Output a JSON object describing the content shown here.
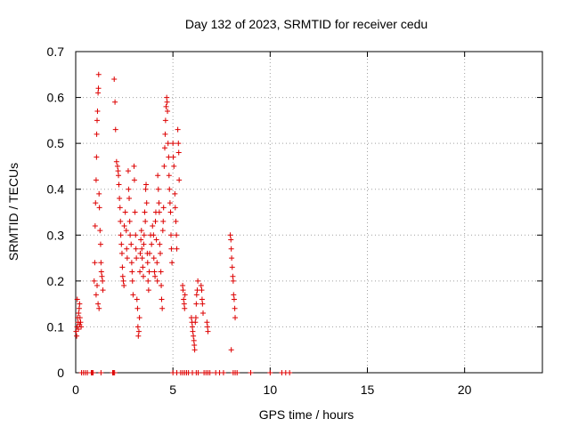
{
  "chart_data": {
    "type": "scatter",
    "title": "Day 132 of 2023, SRMTID for receiver cedu",
    "xlabel": "GPS time / hours",
    "ylabel": "SRMTID / TECUs",
    "xlim": [
      0,
      24
    ],
    "ylim": [
      0,
      0.7
    ],
    "x_ticks": [
      0,
      5,
      10,
      15,
      20
    ],
    "y_ticks": [
      0,
      0.1,
      0.2,
      0.3,
      0.4,
      0.5,
      0.6,
      0.7
    ],
    "x_tick_labels": [
      "0",
      "5",
      "10",
      "15",
      "20"
    ],
    "y_tick_labels": [
      "0",
      "0.1",
      "0.2",
      "0.3",
      "0.4",
      "0.5",
      "0.6",
      "0.7"
    ],
    "grid": true,
    "marker": "+",
    "series": [
      {
        "name": "SRMTID",
        "color": "#dd0000",
        "points": [
          [
            0.02,
            0.09
          ],
          [
            0.05,
            0.08
          ],
          [
            0.07,
            0.1
          ],
          [
            0.1,
            0.12
          ],
          [
            0.12,
            0.11
          ],
          [
            0.15,
            0.13
          ],
          [
            0.18,
            0.14
          ],
          [
            0.2,
            0.15
          ],
          [
            0.22,
            0.12
          ],
          [
            0.25,
            0.11
          ],
          [
            0.28,
            0.1
          ],
          [
            0.08,
            0.16
          ],
          [
            0.14,
            0.095
          ],
          [
            0.2,
            0.105
          ],
          [
            0.95,
            0.2
          ],
          [
            0.98,
            0.24
          ],
          [
            1.0,
            0.32
          ],
          [
            1.02,
            0.37
          ],
          [
            1.05,
            0.42
          ],
          [
            1.07,
            0.47
          ],
          [
            1.08,
            0.52
          ],
          [
            1.1,
            0.55
          ],
          [
            1.12,
            0.57
          ],
          [
            1.15,
            0.61
          ],
          [
            1.17,
            0.62
          ],
          [
            1.18,
            0.65
          ],
          [
            1.2,
            0.39
          ],
          [
            1.22,
            0.36
          ],
          [
            1.25,
            0.31
          ],
          [
            1.28,
            0.28
          ],
          [
            1.3,
            0.24
          ],
          [
            1.32,
            0.22
          ],
          [
            1.35,
            0.21
          ],
          [
            1.38,
            0.2
          ],
          [
            1.4,
            0.18
          ],
          [
            1.15,
            0.15
          ],
          [
            1.2,
            0.14
          ],
          [
            1.1,
            0.19
          ],
          [
            1.05,
            0.17
          ],
          [
            1.98,
            0.64
          ],
          [
            2.02,
            0.59
          ],
          [
            2.05,
            0.53
          ],
          [
            2.1,
            0.46
          ],
          [
            2.15,
            0.45
          ],
          [
            2.18,
            0.44
          ],
          [
            2.2,
            0.43
          ],
          [
            2.22,
            0.41
          ],
          [
            2.25,
            0.38
          ],
          [
            2.28,
            0.36
          ],
          [
            2.3,
            0.33
          ],
          [
            2.32,
            0.3
          ],
          [
            2.35,
            0.28
          ],
          [
            2.38,
            0.26
          ],
          [
            2.4,
            0.23
          ],
          [
            2.42,
            0.21
          ],
          [
            2.45,
            0.2
          ],
          [
            2.48,
            0.19
          ],
          [
            2.5,
            0.32
          ],
          [
            2.55,
            0.35
          ],
          [
            2.6,
            0.31
          ],
          [
            2.62,
            0.27
          ],
          [
            2.65,
            0.25
          ],
          [
            2.7,
            0.44
          ],
          [
            2.72,
            0.4
          ],
          [
            2.75,
            0.38
          ],
          [
            2.78,
            0.33
          ],
          [
            2.8,
            0.3
          ],
          [
            2.85,
            0.28
          ],
          [
            2.88,
            0.24
          ],
          [
            2.9,
            0.22
          ],
          [
            2.92,
            0.2
          ],
          [
            2.95,
            0.17
          ],
          [
            3.0,
            0.45
          ],
          [
            3.02,
            0.42
          ],
          [
            3.05,
            0.35
          ],
          [
            3.08,
            0.3
          ],
          [
            3.1,
            0.27
          ],
          [
            3.12,
            0.25
          ],
          [
            3.15,
            0.16
          ],
          [
            3.18,
            0.14
          ],
          [
            3.2,
            0.1
          ],
          [
            3.22,
            0.08
          ],
          [
            3.25,
            0.09
          ],
          [
            3.28,
            0.12
          ],
          [
            3.3,
            0.22
          ],
          [
            3.32,
            0.26
          ],
          [
            3.35,
            0.29
          ],
          [
            3.38,
            0.31
          ],
          [
            3.4,
            0.27
          ],
          [
            3.42,
            0.25
          ],
          [
            3.45,
            0.23
          ],
          [
            3.48,
            0.21
          ],
          [
            3.5,
            0.28
          ],
          [
            3.52,
            0.3
          ],
          [
            3.55,
            0.35
          ],
          [
            3.58,
            0.33
          ],
          [
            3.6,
            0.4
          ],
          [
            3.62,
            0.41
          ],
          [
            3.65,
            0.37
          ],
          [
            3.68,
            0.26
          ],
          [
            3.7,
            0.24
          ],
          [
            3.72,
            0.2
          ],
          [
            3.75,
            0.18
          ],
          [
            3.78,
            0.22
          ],
          [
            3.8,
            0.26
          ],
          [
            3.85,
            0.3
          ],
          [
            3.9,
            0.28
          ],
          [
            3.95,
            0.32
          ],
          [
            4.0,
            0.3
          ],
          [
            4.02,
            0.25
          ],
          [
            4.05,
            0.22
          ],
          [
            4.08,
            0.21
          ],
          [
            4.1,
            0.33
          ],
          [
            4.12,
            0.35
          ],
          [
            4.15,
            0.29
          ],
          [
            4.18,
            0.24
          ],
          [
            4.2,
            0.2
          ],
          [
            4.22,
            0.43
          ],
          [
            4.25,
            0.4
          ],
          [
            4.28,
            0.37
          ],
          [
            4.3,
            0.35
          ],
          [
            4.32,
            0.28
          ],
          [
            4.35,
            0.26
          ],
          [
            4.38,
            0.22
          ],
          [
            4.4,
            0.19
          ],
          [
            4.42,
            0.16
          ],
          [
            4.45,
            0.14
          ],
          [
            4.48,
            0.31
          ],
          [
            4.5,
            0.33
          ],
          [
            4.52,
            0.36
          ],
          [
            4.55,
            0.45
          ],
          [
            4.58,
            0.49
          ],
          [
            4.6,
            0.52
          ],
          [
            4.62,
            0.55
          ],
          [
            4.65,
            0.58
          ],
          [
            4.68,
            0.6
          ],
          [
            4.7,
            0.59
          ],
          [
            4.72,
            0.57
          ],
          [
            4.75,
            0.5
          ],
          [
            4.78,
            0.47
          ],
          [
            4.8,
            0.43
          ],
          [
            4.82,
            0.4
          ],
          [
            4.85,
            0.37
          ],
          [
            4.88,
            0.35
          ],
          [
            4.9,
            0.3
          ],
          [
            4.92,
            0.27
          ],
          [
            4.95,
            0.24
          ],
          [
            5.0,
            0.5
          ],
          [
            5.02,
            0.47
          ],
          [
            5.05,
            0.45
          ],
          [
            5.1,
            0.39
          ],
          [
            5.12,
            0.36
          ],
          [
            5.15,
            0.33
          ],
          [
            5.18,
            0.3
          ],
          [
            5.2,
            0.27
          ],
          [
            5.25,
            0.53
          ],
          [
            5.28,
            0.5
          ],
          [
            5.3,
            0.48
          ],
          [
            5.32,
            0.42
          ],
          [
            5.5,
            0.19
          ],
          [
            5.52,
            0.18
          ],
          [
            5.55,
            0.16
          ],
          [
            5.58,
            0.15
          ],
          [
            5.6,
            0.14
          ],
          [
            5.62,
            0.17
          ],
          [
            5.95,
            0.12
          ],
          [
            5.98,
            0.11
          ],
          [
            6.0,
            0.1
          ],
          [
            6.02,
            0.09
          ],
          [
            6.05,
            0.08
          ],
          [
            6.08,
            0.07
          ],
          [
            6.1,
            0.06
          ],
          [
            6.12,
            0.05
          ],
          [
            6.15,
            0.11
          ],
          [
            6.18,
            0.12
          ],
          [
            6.2,
            0.15
          ],
          [
            6.22,
            0.17
          ],
          [
            6.25,
            0.18
          ],
          [
            6.28,
            0.2
          ],
          [
            6.45,
            0.19
          ],
          [
            6.48,
            0.18
          ],
          [
            6.5,
            0.16
          ],
          [
            6.52,
            0.15
          ],
          [
            6.55,
            0.13
          ],
          [
            6.75,
            0.11
          ],
          [
            6.78,
            0.1
          ],
          [
            6.8,
            0.09
          ],
          [
            7.95,
            0.3
          ],
          [
            7.98,
            0.29
          ],
          [
            8.0,
            0.27
          ],
          [
            8.02,
            0.25
          ],
          [
            8.05,
            0.23
          ],
          [
            8.08,
            0.21
          ],
          [
            8.1,
            0.2
          ],
          [
            8.12,
            0.17
          ],
          [
            8.15,
            0.16
          ],
          [
            8.18,
            0.14
          ],
          [
            8.2,
            0.12
          ],
          [
            8.0,
            0.05
          ],
          [
            0.3,
            0
          ],
          [
            0.4,
            0
          ],
          [
            0.5,
            0
          ],
          [
            0.6,
            0
          ],
          [
            0.8,
            0
          ],
          [
            0.85,
            0
          ],
          [
            0.9,
            0
          ],
          [
            1.3,
            0
          ],
          [
            1.9,
            0
          ],
          [
            1.95,
            0
          ],
          [
            2.0,
            0
          ],
          [
            5.0,
            0
          ],
          [
            5.2,
            0
          ],
          [
            5.4,
            0
          ],
          [
            5.5,
            0
          ],
          [
            5.6,
            0
          ],
          [
            5.7,
            0
          ],
          [
            5.8,
            0
          ],
          [
            6.0,
            0
          ],
          [
            6.2,
            0
          ],
          [
            6.3,
            0
          ],
          [
            6.6,
            0
          ],
          [
            6.7,
            0
          ],
          [
            6.8,
            0
          ],
          [
            6.9,
            0
          ],
          [
            7.2,
            0
          ],
          [
            7.4,
            0
          ],
          [
            7.6,
            0
          ],
          [
            8.1,
            0
          ],
          [
            8.2,
            0
          ],
          [
            8.3,
            0
          ],
          [
            9.0,
            0
          ],
          [
            10.0,
            0
          ],
          [
            10.6,
            0
          ],
          [
            10.8,
            0
          ],
          [
            11.0,
            0
          ]
        ]
      }
    ]
  }
}
